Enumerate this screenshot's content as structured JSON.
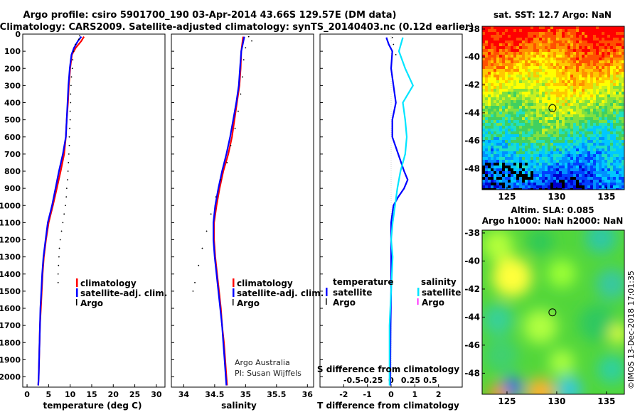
{
  "header": {
    "line1": "Argo profile: csiro 5901700_190 03-Apr-2014 43.66S 129.57E (DM data)",
    "line2": "Climatology: CARS2009. Satellite-adjusted climatology: synTS_20140403.nc (0.12d earlier)"
  },
  "credits": {
    "org": "Argo Australia",
    "pi": "PI: Susan Wijffels",
    "stamp": "©IMOS 13-Dec-2018 17:01:35"
  },
  "colors": {
    "climatology": "#ff0000",
    "satellite": "#0000ff",
    "argo": "#000000",
    "salinity_satellite": "#00e5ff",
    "salinity_argo": "#ff00ff"
  },
  "chart_data": [
    {
      "type": "line",
      "name": "temperature-profile",
      "xlabel": "temperature (deg C)",
      "xlim": [
        -1,
        32
      ],
      "ylim": [
        2060,
        0
      ],
      "xticks": [
        0,
        5,
        10,
        15,
        20,
        25,
        30
      ],
      "yticks": [
        0,
        100,
        200,
        300,
        400,
        500,
        600,
        700,
        800,
        900,
        1000,
        1100,
        1200,
        1300,
        1400,
        1500,
        1600,
        1700,
        1800,
        1900,
        2000
      ],
      "legend": [
        "climatology",
        "satellite-adj. clim.",
        "Argo"
      ],
      "series": [
        {
          "name": "climatology",
          "style": "line",
          "points": [
            [
              13.2,
              15
            ],
            [
              12.6,
              40
            ],
            [
              11.3,
              80
            ],
            [
              10.4,
              120
            ],
            [
              10.0,
              200
            ],
            [
              9.7,
              300
            ],
            [
              9.5,
              400
            ],
            [
              9.2,
              500
            ],
            [
              9.0,
              600
            ],
            [
              8.6,
              700
            ],
            [
              7.8,
              800
            ],
            [
              6.9,
              900
            ],
            [
              6.0,
              1000
            ],
            [
              5.0,
              1100
            ],
            [
              4.4,
              1200
            ],
            [
              3.9,
              1300
            ],
            [
              3.6,
              1400
            ],
            [
              3.4,
              1500
            ],
            [
              3.2,
              1600
            ],
            [
              3.0,
              1700
            ],
            [
              2.9,
              1800
            ],
            [
              2.8,
              1900
            ],
            [
              2.7,
              2000
            ],
            [
              2.6,
              2050
            ]
          ]
        },
        {
          "name": "satellite-adj. clim.",
          "style": "line",
          "points": [
            [
              12.6,
              15
            ],
            [
              11.8,
              40
            ],
            [
              10.9,
              80
            ],
            [
              10.3,
              120
            ],
            [
              9.9,
              200
            ],
            [
              9.6,
              300
            ],
            [
              9.4,
              400
            ],
            [
              9.2,
              500
            ],
            [
              9.0,
              600
            ],
            [
              8.3,
              700
            ],
            [
              7.4,
              800
            ],
            [
              6.6,
              900
            ],
            [
              5.8,
              1000
            ],
            [
              4.8,
              1100
            ],
            [
              4.3,
              1200
            ],
            [
              3.8,
              1300
            ],
            [
              3.5,
              1400
            ],
            [
              3.3,
              1500
            ],
            [
              3.1,
              1600
            ],
            [
              3.0,
              1700
            ],
            [
              2.9,
              1800
            ],
            [
              2.8,
              1900
            ],
            [
              2.7,
              2000
            ],
            [
              2.6,
              2050
            ]
          ]
        },
        {
          "name": "Argo",
          "style": "dots",
          "points": [
            [
              12.2,
              10
            ],
            [
              12.0,
              30
            ],
            [
              11.2,
              60
            ],
            [
              10.8,
              100
            ],
            [
              10.6,
              150
            ],
            [
              10.5,
              200
            ],
            [
              10.3,
              250
            ],
            [
              10.2,
              300
            ],
            [
              10.1,
              350
            ],
            [
              10.1,
              400
            ],
            [
              10.0,
              450
            ],
            [
              10.0,
              500
            ],
            [
              9.9,
              550
            ],
            [
              9.8,
              600
            ],
            [
              9.8,
              650
            ],
            [
              9.7,
              700
            ],
            [
              9.6,
              750
            ],
            [
              9.5,
              800
            ],
            [
              9.4,
              850
            ],
            [
              9.2,
              900
            ],
            [
              9.1,
              950
            ],
            [
              8.9,
              1000
            ],
            [
              8.6,
              1050
            ],
            [
              8.3,
              1100
            ],
            [
              8.0,
              1150
            ],
            [
              7.7,
              1200
            ],
            [
              7.5,
              1250
            ],
            [
              7.4,
              1300
            ],
            [
              7.3,
              1350
            ],
            [
              7.2,
              1400
            ],
            [
              7.2,
              1450
            ]
          ]
        }
      ]
    },
    {
      "type": "line",
      "name": "salinity-profile",
      "xlabel": "salinity",
      "xlim": [
        33.8,
        36.1
      ],
      "ylim": [
        2060,
        0
      ],
      "xticks": [
        34,
        34.5,
        35,
        35.5,
        36
      ],
      "xticklabels": [
        "34",
        "34.5",
        "35",
        "35.5",
        "36"
      ],
      "legend": [
        "climatology",
        "satellite-adj. clim.",
        "Argo"
      ],
      "series": [
        {
          "name": "climatology",
          "style": "line",
          "points": [
            [
              34.96,
              15
            ],
            [
              34.93,
              100
            ],
            [
              34.92,
              200
            ],
            [
              34.9,
              300
            ],
            [
              34.86,
              400
            ],
            [
              34.82,
              500
            ],
            [
              34.78,
              600
            ],
            [
              34.72,
              700
            ],
            [
              34.64,
              800
            ],
            [
              34.58,
              900
            ],
            [
              34.53,
              1000
            ],
            [
              34.49,
              1100
            ],
            [
              34.49,
              1200
            ],
            [
              34.51,
              1300
            ],
            [
              34.54,
              1400
            ],
            [
              34.57,
              1500
            ],
            [
              34.6,
              1600
            ],
            [
              34.62,
              1700
            ],
            [
              34.65,
              1800
            ],
            [
              34.67,
              1900
            ],
            [
              34.69,
              2000
            ],
            [
              34.7,
              2050
            ]
          ]
        },
        {
          "name": "satellite-adj. clim.",
          "style": "line",
          "points": [
            [
              34.98,
              15
            ],
            [
              34.93,
              100
            ],
            [
              34.91,
              200
            ],
            [
              34.89,
              300
            ],
            [
              34.85,
              400
            ],
            [
              34.8,
              500
            ],
            [
              34.75,
              600
            ],
            [
              34.69,
              700
            ],
            [
              34.62,
              800
            ],
            [
              34.56,
              900
            ],
            [
              34.51,
              1000
            ],
            [
              34.48,
              1100
            ],
            [
              34.48,
              1200
            ],
            [
              34.5,
              1300
            ],
            [
              34.53,
              1400
            ],
            [
              34.56,
              1500
            ],
            [
              34.59,
              1600
            ],
            [
              34.62,
              1700
            ],
            [
              34.64,
              1800
            ],
            [
              34.66,
              1900
            ],
            [
              34.68,
              2000
            ],
            [
              34.69,
              2050
            ]
          ]
        },
        {
          "name": "Argo",
          "style": "dots",
          "points": [
            [
              35.05,
              15
            ],
            [
              35.1,
              40
            ],
            [
              35.0,
              80
            ],
            [
              34.97,
              150
            ],
            [
              34.95,
              250
            ],
            [
              34.92,
              350
            ],
            [
              34.88,
              450
            ],
            [
              34.83,
              550
            ],
            [
              34.76,
              650
            ],
            [
              34.7,
              750
            ],
            [
              34.6,
              850
            ],
            [
              34.52,
              950
            ],
            [
              34.44,
              1050
            ],
            [
              34.37,
              1150
            ],
            [
              34.3,
              1250
            ],
            [
              34.24,
              1350
            ],
            [
              34.18,
              1450
            ],
            [
              34.15,
              1500
            ]
          ]
        }
      ]
    },
    {
      "type": "line",
      "name": "difference-profile",
      "xlabel": "T difference from climatology",
      "xlabel2": "S difference from climatology",
      "xlim": [
        -3,
        3
      ],
      "ylim": [
        2060,
        0
      ],
      "xticks": [
        -2,
        -1,
        0,
        1,
        2
      ],
      "xticklabels": [
        "-2",
        "-1",
        "0",
        "1",
        "2"
      ],
      "sticks": [
        -0.5,
        -0.25,
        0,
        0.25,
        0.5
      ],
      "sticklabels": [
        "-0.5",
        "-0.25",
        "0",
        "0.25",
        "0.5"
      ],
      "legend_temperature_title": "temperature",
      "legend_salinity_title": "salinity",
      "legend_temperature": [
        "satellite",
        "Argo"
      ],
      "legend_salinity": [
        "satellite",
        "Argo"
      ],
      "series": [
        {
          "name": "temperature satellite",
          "style": "line",
          "points": [
            [
              -0.2,
              20
            ],
            [
              -0.1,
              60
            ],
            [
              0.05,
              100
            ],
            [
              0.0,
              200
            ],
            [
              0.1,
              300
            ],
            [
              0.2,
              400
            ],
            [
              0.05,
              500
            ],
            [
              0.05,
              600
            ],
            [
              0.3,
              700
            ],
            [
              0.55,
              800
            ],
            [
              0.7,
              850
            ],
            [
              0.55,
              900
            ],
            [
              0.3,
              950
            ],
            [
              0.1,
              1000
            ],
            [
              0.0,
              1100
            ],
            [
              0.0,
              1300
            ],
            [
              0.0,
              1500
            ],
            [
              -0.02,
              1700
            ],
            [
              -0.03,
              1900
            ],
            [
              -0.03,
              2050
            ]
          ]
        },
        {
          "name": "salinity satellite",
          "style": "line",
          "points": [
            [
              0.15,
              20
            ],
            [
              0.1,
              100
            ],
            [
              0.18,
              200
            ],
            [
              0.28,
              300
            ],
            [
              0.15,
              400
            ],
            [
              0.18,
              500
            ],
            [
              0.2,
              600
            ],
            [
              0.18,
              700
            ],
            [
              0.12,
              800
            ],
            [
              0.08,
              900
            ],
            [
              0.05,
              1000
            ],
            [
              0.02,
              1100
            ],
            [
              0.0,
              1200
            ],
            [
              0.02,
              1300
            ],
            [
              0.0,
              1500
            ],
            [
              -0.02,
              1700
            ],
            [
              -0.02,
              1900
            ],
            [
              -0.02,
              2050
            ]
          ]
        },
        {
          "name": "temperature Argo",
          "style": "dots",
          "points": [
            [
              0.05,
              20
            ],
            [
              0.1,
              60
            ],
            [
              0.2,
              120
            ]
          ]
        }
      ]
    },
    {
      "type": "heatmap",
      "name": "sst-map",
      "title": "sat. SST: 12.7 Argo: NaN",
      "xlim": [
        122.5,
        136.8
      ],
      "ylim": [
        -49.5,
        -37.8
      ],
      "xticks": [
        125,
        130,
        135
      ],
      "yticks": [
        -38,
        -40,
        -42,
        -44,
        -46,
        -48
      ],
      "xticklabels": [
        "125",
        "130",
        "135"
      ],
      "yticklabels": [
        "-38",
        "-40",
        "-42",
        "-44",
        "-46",
        "-48"
      ],
      "marker": {
        "lon": 129.57,
        "lat": -43.66
      },
      "sst_value": 12.7
    },
    {
      "type": "heatmap",
      "name": "sla-map",
      "title": "Altim. SLA: 0.085",
      "subtitle": "Argo h1000: NaN h2000: NaN",
      "xlim": [
        122.5,
        136.8
      ],
      "ylim": [
        -49.5,
        -37.8
      ],
      "xticks": [
        125,
        130,
        135
      ],
      "yticks": [
        -38,
        -40,
        -42,
        -44,
        -46,
        -48
      ],
      "xticklabels": [
        "125",
        "130",
        "135"
      ],
      "yticklabels": [
        "-38",
        "-40",
        "-42",
        "-44",
        "-46",
        "-48"
      ],
      "marker": {
        "lon": 129.57,
        "lat": -43.66
      },
      "sla_value": 0.085
    }
  ]
}
